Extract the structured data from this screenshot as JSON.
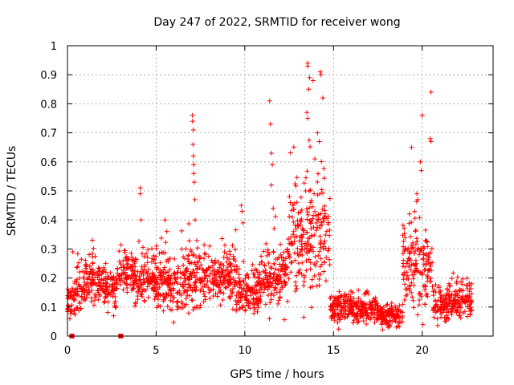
{
  "chart_data": {
    "type": "scatter",
    "title": "Day 247 of 2022, SRMTID for receiver wong",
    "xlabel": "GPS time / hours",
    "ylabel": "SRMTID / TECUs",
    "xlim": [
      0,
      24
    ],
    "ylim": [
      0,
      1
    ],
    "x_ticks": [
      0,
      5,
      10,
      15,
      20
    ],
    "y_ticks": [
      0,
      0.1,
      0.2,
      0.3,
      0.4,
      0.5,
      0.6,
      0.7,
      0.8,
      0.9,
      1
    ],
    "x_tick_labels": [
      "0",
      "5",
      "10",
      "15",
      "20"
    ],
    "y_tick_labels": [
      "0",
      "0.1",
      "0.2",
      "0.3",
      "0.4",
      "0.5",
      "0.6",
      "0.7",
      "0.8",
      "0.9",
      "1"
    ],
    "grid": true,
    "marker": "+",
    "marker_color": "#ff0000",
    "series": [
      {
        "name": "SRMTID",
        "segments": [
          {
            "start": 0.0,
            "end": 0.4,
            "base": 0.12,
            "spread": 0.05
          },
          {
            "start": 0.4,
            "end": 1.0,
            "base": 0.15,
            "spread": 0.07
          },
          {
            "start": 1.0,
            "end": 2.0,
            "base": 0.19,
            "spread": 0.06
          },
          {
            "start": 2.0,
            "end": 2.9,
            "base": 0.17,
            "spread": 0.06
          },
          {
            "start": 2.9,
            "end": 3.8,
            "base": 0.22,
            "spread": 0.06
          },
          {
            "start": 3.8,
            "end": 5.0,
            "base": 0.19,
            "spread": 0.07
          },
          {
            "start": 5.0,
            "end": 6.5,
            "base": 0.18,
            "spread": 0.08
          },
          {
            "start": 6.5,
            "end": 8.0,
            "base": 0.2,
            "spread": 0.08
          },
          {
            "start": 8.0,
            "end": 9.5,
            "base": 0.21,
            "spread": 0.08
          },
          {
            "start": 9.5,
            "end": 10.8,
            "base": 0.16,
            "spread": 0.07
          },
          {
            "start": 10.8,
            "end": 11.8,
            "base": 0.2,
            "spread": 0.09
          },
          {
            "start": 11.8,
            "end": 12.5,
            "base": 0.22,
            "spread": 0.09
          },
          {
            "start": 12.5,
            "end": 14.8,
            "base": 0.34,
            "spread": 0.16
          },
          {
            "start": 14.8,
            "end": 16.0,
            "base": 0.1,
            "spread": 0.04
          },
          {
            "start": 16.0,
            "end": 17.5,
            "base": 0.09,
            "spread": 0.04
          },
          {
            "start": 17.5,
            "end": 18.9,
            "base": 0.07,
            "spread": 0.03
          },
          {
            "start": 18.9,
            "end": 20.6,
            "base": 0.24,
            "spread": 0.12
          },
          {
            "start": 20.6,
            "end": 21.5,
            "base": 0.11,
            "spread": 0.05
          },
          {
            "start": 21.5,
            "end": 22.8,
            "base": 0.12,
            "spread": 0.05
          }
        ],
        "spikes": [
          {
            "x": 0.3,
            "y": 0.29
          },
          {
            "x": 1.4,
            "y": 0.33
          },
          {
            "x": 4.1,
            "y": 0.51
          },
          {
            "x": 4.1,
            "y": 0.49
          },
          {
            "x": 4.15,
            "y": 0.4
          },
          {
            "x": 5.5,
            "y": 0.4
          },
          {
            "x": 5.6,
            "y": 0.36
          },
          {
            "x": 7.05,
            "y": 0.76
          },
          {
            "x": 7.05,
            "y": 0.74
          },
          {
            "x": 7.1,
            "y": 0.71
          },
          {
            "x": 7.08,
            "y": 0.66
          },
          {
            "x": 7.1,
            "y": 0.62
          },
          {
            "x": 7.12,
            "y": 0.59
          },
          {
            "x": 7.12,
            "y": 0.56
          },
          {
            "x": 7.15,
            "y": 0.53
          },
          {
            "x": 7.18,
            "y": 0.47
          },
          {
            "x": 7.2,
            "y": 0.4
          },
          {
            "x": 9.8,
            "y": 0.45
          },
          {
            "x": 9.85,
            "y": 0.43
          },
          {
            "x": 9.9,
            "y": 0.39
          },
          {
            "x": 11.4,
            "y": 0.81
          },
          {
            "x": 11.45,
            "y": 0.73
          },
          {
            "x": 11.5,
            "y": 0.63
          },
          {
            "x": 11.55,
            "y": 0.59
          },
          {
            "x": 11.5,
            "y": 0.52
          },
          {
            "x": 11.6,
            "y": 0.44
          },
          {
            "x": 11.65,
            "y": 0.37
          },
          {
            "x": 13.55,
            "y": 0.94
          },
          {
            "x": 13.55,
            "y": 0.93
          },
          {
            "x": 13.65,
            "y": 0.89
          },
          {
            "x": 13.6,
            "y": 0.85
          },
          {
            "x": 13.85,
            "y": 0.88
          },
          {
            "x": 13.5,
            "y": 0.77
          },
          {
            "x": 13.55,
            "y": 0.75
          },
          {
            "x": 14.25,
            "y": 0.91
          },
          {
            "x": 14.3,
            "y": 0.9
          },
          {
            "x": 14.4,
            "y": 0.82
          },
          {
            "x": 14.1,
            "y": 0.7
          },
          {
            "x": 14.2,
            "y": 0.67
          },
          {
            "x": 13.95,
            "y": 0.61
          },
          {
            "x": 19.4,
            "y": 0.65
          },
          {
            "x": 19.9,
            "y": 0.6
          },
          {
            "x": 19.95,
            "y": 0.57
          },
          {
            "x": 19.7,
            "y": 0.49
          },
          {
            "x": 19.75,
            "y": 0.47
          },
          {
            "x": 20.0,
            "y": 0.76
          },
          {
            "x": 20.5,
            "y": 0.84
          },
          {
            "x": 20.45,
            "y": 0.68
          },
          {
            "x": 20.5,
            "y": 0.67
          }
        ],
        "zero_points": [
          0.25,
          3.0
        ]
      }
    ]
  }
}
